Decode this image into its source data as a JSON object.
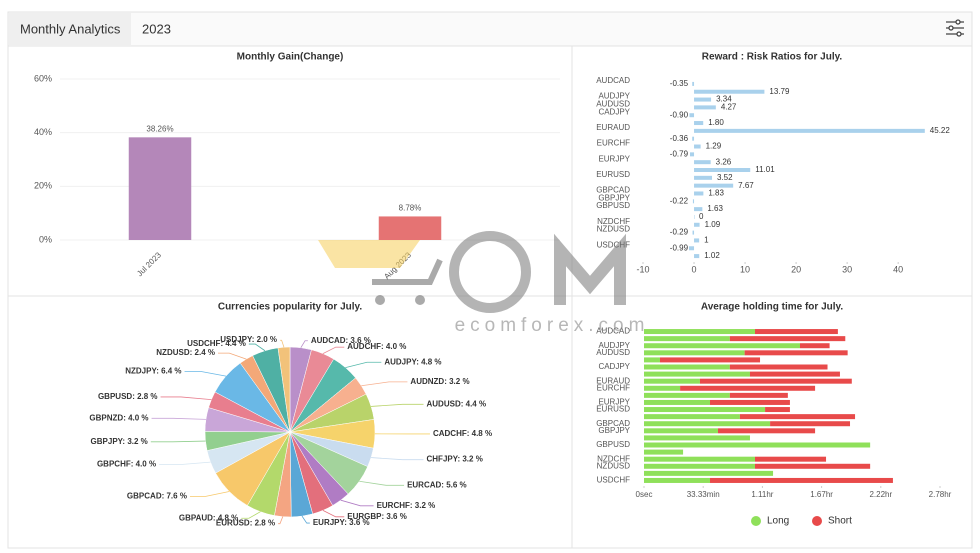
{
  "header": {
    "title": "Monthly Analytics",
    "year": "2023"
  },
  "watermark": "ecomforex.com",
  "chart_data": [
    {
      "type": "bar",
      "title": "Monthly Gain(Change)",
      "categories": [
        "Jul 2023",
        "Aug 2023"
      ],
      "values": [
        38.26,
        8.78
      ],
      "value_labels": [
        "38.26%",
        "8.78%"
      ],
      "colors": [
        "#b487b9",
        "#e57373"
      ],
      "ylim": [
        0,
        60
      ],
      "yticks": [
        {
          "value": 0,
          "label": "0%"
        },
        {
          "value": 20,
          "label": "20%"
        },
        {
          "value": 40,
          "label": "40%"
        },
        {
          "value": 60,
          "label": "60%"
        }
      ],
      "grid": true
    },
    {
      "type": "hbar",
      "title": "Reward : Risk Ratios for July.",
      "categories": [
        "AUDCAD",
        null,
        "AUDJPY",
        "AUDUSD",
        "CADJPY",
        null,
        "EURAUD",
        null,
        "EURCHF",
        null,
        "EURJPY",
        null,
        "EURUSD",
        null,
        "GBPCAD",
        "GBPJPY",
        "GBPUSD",
        null,
        "NZDCHF",
        "NZDUSD",
        null,
        "USDCHF",
        null
      ],
      "values": [
        -0.35,
        13.79,
        3.34,
        4.27,
        -0.9,
        1.8,
        45.22,
        -0.36,
        1.29,
        -0.79,
        3.26,
        11.01,
        3.52,
        7.67,
        1.83,
        -0.22,
        1.63,
        0,
        1.09,
        -0.29,
        1,
        -0.99,
        1.02
      ],
      "value_labels": [
        "-0.35",
        "13.79",
        "3.34",
        "4.27",
        "-0.90",
        "1.80",
        "45.22",
        "-0.36",
        "1.29",
        "-0.79",
        "3.26",
        "11.01",
        "3.52",
        "7.67",
        "1.83",
        "-0.22",
        "1.63",
        "0",
        "1.09",
        "-0.29",
        "1",
        "-0.99",
        "1.02"
      ],
      "color": "#a9d1ec",
      "xlim": [
        -10,
        48
      ],
      "xticks": [
        -10,
        0,
        10,
        20,
        30,
        40
      ],
      "grid": false
    },
    {
      "type": "pie",
      "title": "Currencies popularity for July.",
      "categories": [
        "AUDCAD",
        "AUDCHF",
        "AUDJPY",
        "AUDNZD",
        "AUDUSD",
        "CADCHF",
        "CHFJPY",
        "EURCAD",
        "EURCHF",
        "EURGBP",
        "EURJPY",
        "EURUSD",
        "GBPAUD",
        "GBPCAD",
        "GBPCHF",
        "GBPJPY",
        "GBPNZD",
        "GBPUSD",
        "NZDJPY",
        "NZDUSD",
        "USDCHF",
        "USDJPY"
      ],
      "values": [
        3.6,
        4.0,
        4.8,
        3.2,
        4.4,
        4.8,
        3.2,
        5.6,
        3.2,
        3.6,
        3.6,
        2.8,
        4.8,
        7.6,
        4.0,
        3.2,
        4.0,
        2.8,
        6.4,
        2.4,
        4.4,
        2.0
      ],
      "value_labels": [
        "3.6 %",
        "4.0 %",
        "4.8 %",
        "3.2 %",
        "4.4 %",
        "4.8 %",
        "3.2 %",
        "5.6 %",
        "3.2 %",
        "3.6 %",
        "3.6 %",
        "2.8 %",
        "4.8 %",
        "7.6 %",
        "4.0 %",
        "3.2 %",
        "4.0 %",
        "2.8 %",
        "6.4 %",
        "2.4 %",
        "4.4 %",
        "2.0 %"
      ],
      "colors": [
        "#b98fc9",
        "#e98a96",
        "#56b9ab",
        "#f7b08f",
        "#b9d36a",
        "#f6d36b",
        "#c9dcef",
        "#a3d39c",
        "#b07cc4",
        "#e36f7c",
        "#5aa7d6",
        "#f4a582",
        "#b3d96b",
        "#f7c86a",
        "#d6e6f2",
        "#92cf8f",
        "#c9a6d8",
        "#e87e8e",
        "#6ab8e6",
        "#f3a878",
        "#4fb0a4",
        "#f2c27a"
      ]
    },
    {
      "type": "stacked_hbar",
      "title": "Average holding time for July.",
      "categories": [
        "AUDCAD",
        null,
        "AUDJPY",
        "AUDUSD",
        null,
        "CADJPY",
        null,
        "EURAUD",
        "EURCHF",
        null,
        "EURJPY",
        "EURUSD",
        null,
        "GBPCAD",
        "GBPJPY",
        null,
        "GBPUSD",
        null,
        "NZDCHF",
        "NZDUSD",
        null,
        "USDCHF"
      ],
      "series": [
        {
          "name": "Long",
          "color": "#8fe05a",
          "values": [
            3750,
            2900,
            5270,
            3400,
            540,
            2900,
            3580,
            1890,
            1220,
            2900,
            2230,
            4090,
            3240,
            4260,
            2500,
            3580,
            7640,
            1320,
            3750,
            3750,
            4360,
            2230
          ]
        },
        {
          "name": "Short",
          "color": "#e84a4a",
          "values": [
            2800,
            3900,
            1000,
            3480,
            3380,
            3300,
            3040,
            5130,
            4560,
            1960,
            2700,
            840,
            3890,
            2700,
            3280,
            0,
            0,
            0,
            2400,
            3890,
            0,
            6180
          ]
        }
      ],
      "xlim": [
        0,
        10000
      ],
      "xticks": [
        {
          "value": 0,
          "label": "0sec"
        },
        {
          "value": 2000,
          "label": "33.33min"
        },
        {
          "value": 4000,
          "label": "1.11hr"
        },
        {
          "value": 6000,
          "label": "1.67hr"
        },
        {
          "value": 8000,
          "label": "2.22hr"
        },
        {
          "value": 10000,
          "label": "2.78hr"
        }
      ],
      "grid": false,
      "legend": "bottom"
    }
  ]
}
